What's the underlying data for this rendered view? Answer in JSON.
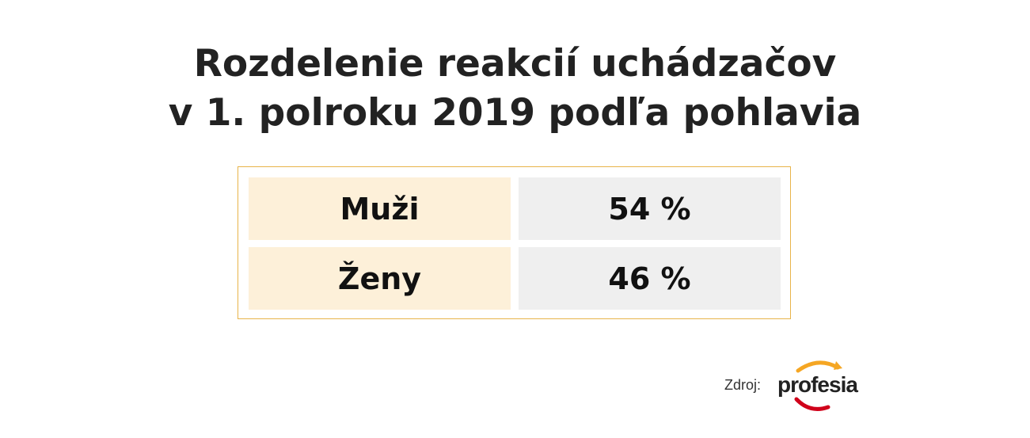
{
  "chart_data": {
    "type": "table",
    "title": "Rozdelenie reakcií uchádzačov v 1. polroku 2019 podľa pohlavia",
    "title_lines": [
      "Rozdelenie reakcií uchádzačov",
      "v 1. polroku 2019 podľa pohlavia"
    ],
    "rows": [
      {
        "label": "Muži",
        "value_text": "54 %",
        "value": 54
      },
      {
        "label": "Ženy",
        "value_text": "46 %",
        "value": 46
      }
    ],
    "unit": "%"
  },
  "source": {
    "label": "Zdroj:",
    "brand": "profesia"
  },
  "colors": {
    "frame_border": "#e8b44a",
    "label_cell_bg": "#fdf0d9",
    "value_cell_bg": "#efefef",
    "logo_orange": "#f5a623",
    "logo_red": "#d0021b"
  }
}
